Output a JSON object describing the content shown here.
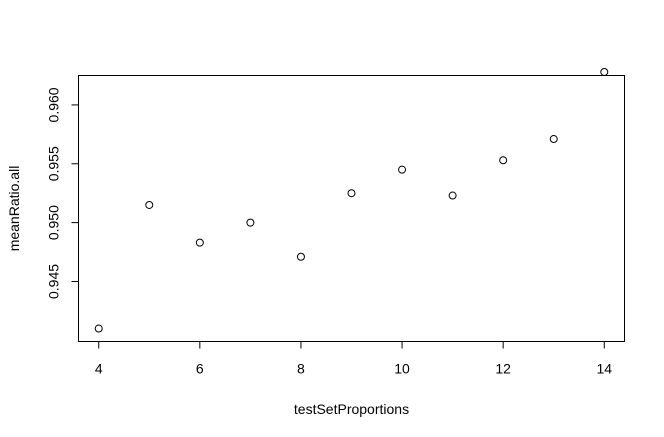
{
  "chart_data": {
    "type": "scatter",
    "title": "",
    "xlabel": "testSetProportions",
    "ylabel": "meanRatio.all",
    "xlim": [
      3.6,
      14.4
    ],
    "ylim": [
      0.9399,
      0.9625
    ],
    "x_ticks": [
      4,
      6,
      8,
      10,
      12,
      14
    ],
    "x_tick_labels": [
      "4",
      "6",
      "8",
      "10",
      "12",
      "14"
    ],
    "y_ticks": [
      0.945,
      0.95,
      0.955,
      0.96
    ],
    "y_tick_labels": [
      "0.945",
      "0.950",
      "0.955",
      "0.960"
    ],
    "grid": false,
    "legend": "none",
    "series": [
      {
        "x": [
          4,
          5,
          6,
          7,
          8,
          9,
          10,
          11,
          12,
          13,
          14
        ],
        "y": [
          0.941,
          0.9515,
          0.9483,
          0.95,
          0.9471,
          0.9525,
          0.9545,
          0.9523,
          0.9553,
          0.9571,
          0.9628
        ]
      }
    ],
    "marker": "open-circle",
    "color": "#000000"
  }
}
